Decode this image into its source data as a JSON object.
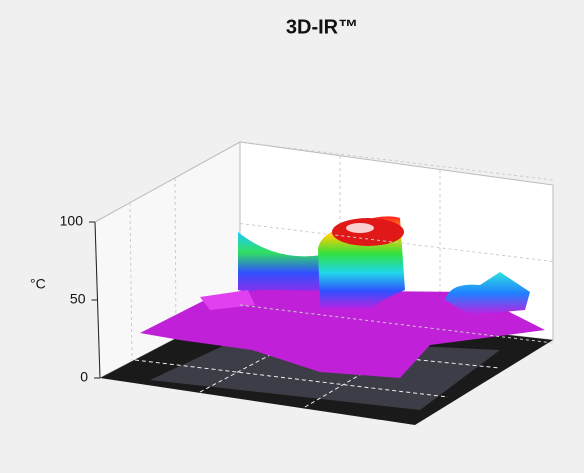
{
  "chart_data": {
    "type": "surface3d",
    "title": "3D-IR™",
    "ylabel": "°C",
    "ylim": [
      0,
      100
    ],
    "yticks": [
      0,
      50,
      100
    ],
    "grid": true
  }
}
